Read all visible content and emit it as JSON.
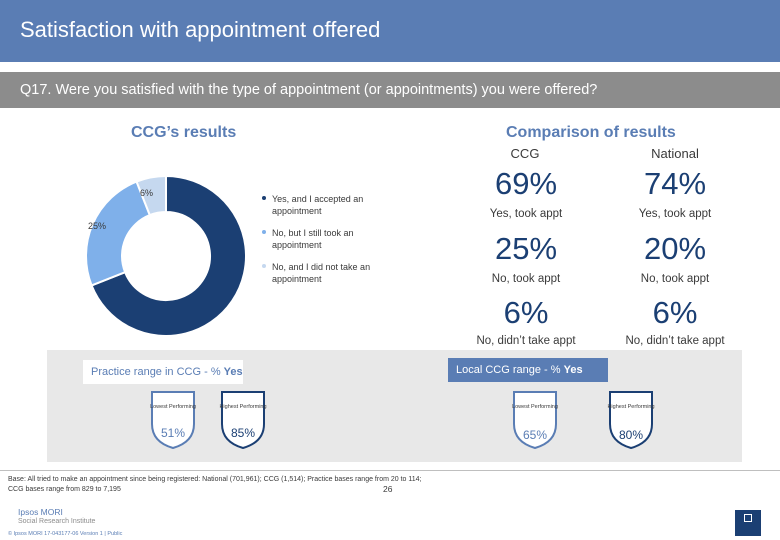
{
  "header": {
    "title": "Satisfaction with appointment offered"
  },
  "question": {
    "text": "Q17. Were you satisfied with the type of appointment (or appointments) you were offered?"
  },
  "ccg_results": {
    "heading": "CCG’s results"
  },
  "comparison": {
    "heading": "Comparison of results",
    "col_ccg": "CCG",
    "col_national": "National",
    "rows": [
      {
        "ccg": "69%",
        "national": "74%",
        "ccg_label": "Yes, took appt",
        "national_label": "Yes, took appt"
      },
      {
        "ccg": "25%",
        "national": "20%",
        "ccg_label": "No, took appt",
        "national_label": "No, took appt"
      },
      {
        "ccg": "6%",
        "national": "6%",
        "ccg_label": "No, didn’t take appt",
        "national_label": "No, didn’t take appt"
      }
    ]
  },
  "chart_data": {
    "type": "pie",
    "donut": true,
    "categories": [
      "Yes, and I accepted an appointment",
      "No, but I still took an appointment",
      "No, and I did not take an appointment"
    ],
    "values": [
      69,
      25,
      6
    ],
    "labels": [
      "69%",
      "25%",
      "6%"
    ],
    "colors": [
      "#1b3f73",
      "#7fb0ea",
      "#c5d8ef"
    ]
  },
  "practice_range": {
    "heading_prefix": "Practice range in CCG - % ",
    "heading_bold": "Yes",
    "lowest_caption": "Lowest Performing",
    "highest_caption": "Highest Performing",
    "lowest_value": "51%",
    "highest_value": "85%"
  },
  "local_range": {
    "heading_prefix": "Local CCG range - % ",
    "heading_bold": "Yes",
    "lowest_caption": "Lowest Performing",
    "highest_caption": "Highest Performing",
    "lowest_value": "65%",
    "highest_value": "80%"
  },
  "colors": {
    "accent": "#5a7db4",
    "dark": "#1b3f73",
    "mid": "#7fb0ea",
    "light": "#c5d8ef"
  },
  "footer": {
    "base_note": "Base: All tried to make an appointment since being registered: National (701,961); CCG (1,514); Practice bases range from 20 to 114; CCG bases range from 829 to 7,195",
    "logo_line1": "Ipsos MORI",
    "logo_line2": "Social Research Institute",
    "copyright": "© Ipsos MORI      17-043177-06 Version 1 | Public",
    "page_number": "26"
  }
}
